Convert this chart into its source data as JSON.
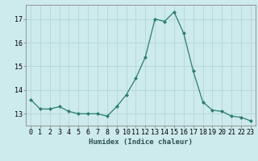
{
  "x": [
    0,
    1,
    2,
    3,
    4,
    5,
    6,
    7,
    8,
    9,
    10,
    11,
    12,
    13,
    14,
    15,
    16,
    17,
    18,
    19,
    20,
    21,
    22,
    23
  ],
  "y": [
    13.6,
    13.2,
    13.2,
    13.3,
    13.1,
    13.0,
    13.0,
    13.0,
    12.9,
    13.3,
    13.8,
    14.5,
    15.4,
    17.0,
    16.9,
    17.3,
    16.4,
    14.8,
    13.5,
    13.15,
    13.1,
    12.9,
    12.85,
    12.7
  ],
  "xlabel": "Humidex (Indice chaleur)",
  "bg_color": "#cdeaec",
  "line_color": "#2d7d6e",
  "grid_color": "#b8d8da",
  "ylim_min": 12.5,
  "ylim_max": 17.6,
  "yticks": [
    13,
    14,
    15,
    16,
    17
  ],
  "xticks": [
    0,
    1,
    2,
    3,
    4,
    5,
    6,
    7,
    8,
    9,
    10,
    11,
    12,
    13,
    14,
    15,
    16,
    17,
    18,
    19,
    20,
    21,
    22,
    23
  ],
  "xlabel_fontsize": 6.5,
  "tick_fontsize": 6.0
}
